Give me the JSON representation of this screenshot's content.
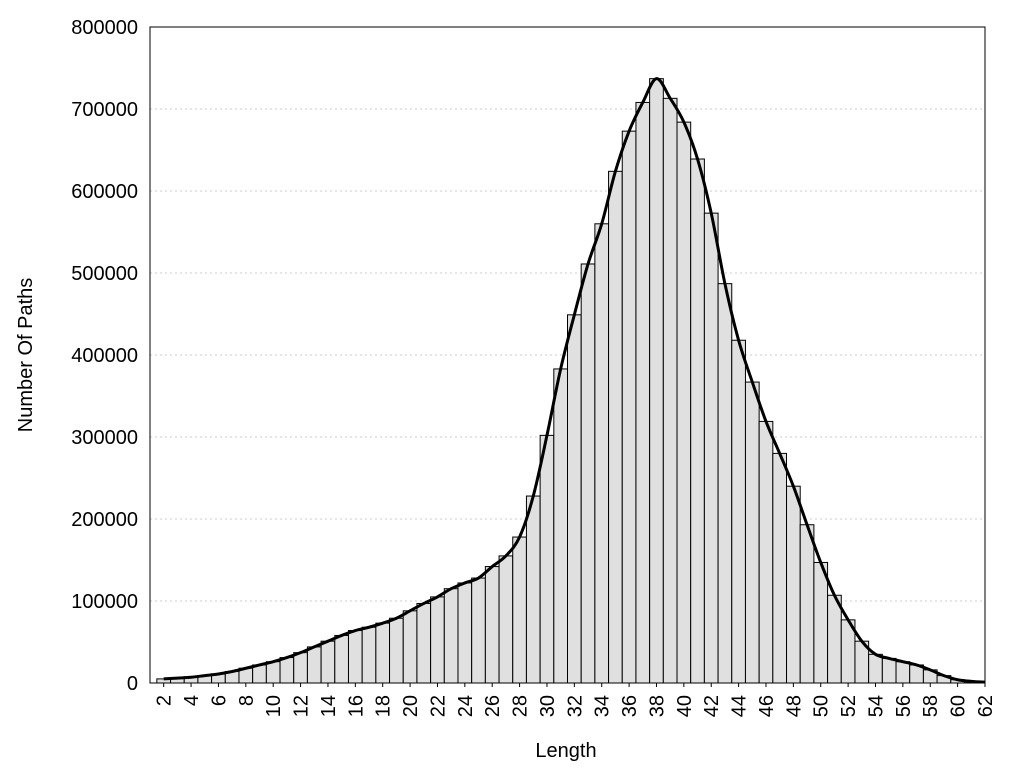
{
  "chart_data": {
    "type": "bar",
    "x_label": "Length",
    "y_label": "Number Of Paths",
    "x": [
      2,
      3,
      4,
      5,
      6,
      7,
      8,
      9,
      10,
      11,
      12,
      13,
      14,
      15,
      16,
      17,
      18,
      19,
      20,
      21,
      22,
      23,
      24,
      25,
      26,
      27,
      28,
      29,
      30,
      31,
      32,
      33,
      34,
      35,
      36,
      37,
      38,
      39,
      40,
      41,
      42,
      43,
      44,
      45,
      46,
      47,
      48,
      49,
      50,
      51,
      52,
      53,
      54,
      55,
      56,
      57,
      58,
      59,
      60,
      61,
      62
    ],
    "values": [
      5000,
      6000,
      7000,
      9000,
      11000,
      14000,
      18000,
      22000,
      26000,
      31000,
      37000,
      44000,
      51000,
      58000,
      64000,
      68000,
      73000,
      79000,
      88000,
      97000,
      105000,
      115000,
      122000,
      128000,
      142000,
      155000,
      178000,
      228000,
      302000,
      383000,
      449000,
      511000,
      560000,
      624000,
      673000,
      708000,
      737000,
      713000,
      684000,
      639000,
      573000,
      487000,
      418000,
      367000,
      319000,
      280000,
      240000,
      193000,
      147000,
      107000,
      77000,
      51000,
      35000,
      30000,
      26000,
      22000,
      16000,
      9000,
      4000,
      2000,
      1000
    ],
    "color": "#e0e0e0",
    "line": true,
    "line_color": "#000000",
    "xlim": [
      1,
      62
    ],
    "xticks": [
      2,
      4,
      6,
      8,
      10,
      12,
      14,
      16,
      18,
      20,
      22,
      24,
      26,
      28,
      30,
      32,
      34,
      36,
      38,
      40,
      42,
      44,
      46,
      48,
      50,
      52,
      54,
      56,
      58,
      60,
      62
    ],
    "ylim": [
      0,
      800000
    ],
    "yticks": [
      0,
      100000,
      200000,
      300000,
      400000,
      500000,
      600000,
      700000,
      800000
    ],
    "grid": true
  }
}
